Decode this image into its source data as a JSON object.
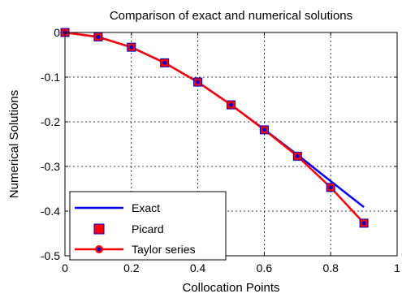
{
  "chart_data": {
    "type": "line",
    "title": "Comparison of exact and numerical solutions",
    "xlabel": "Collocation Points",
    "ylabel": "Numerical Solutions",
    "xlim": [
      0,
      1
    ],
    "ylim": [
      -0.5,
      0
    ],
    "x_ticks": [
      "0",
      "0.2",
      "0.4",
      "0.6",
      "0.8",
      "1"
    ],
    "y_ticks": [
      "0",
      "-0.1",
      "-0.2",
      "-0.3",
      "-0.4",
      "-0.5"
    ],
    "x_tick_values": [
      0,
      0.2,
      0.4,
      0.6,
      0.8,
      1
    ],
    "y_tick_values": [
      0,
      -0.1,
      -0.2,
      -0.3,
      -0.4,
      -0.5
    ],
    "grid": true,
    "grid_x": [
      0.2,
      0.4,
      0.6,
      0.8
    ],
    "grid_y": [
      -0.1,
      -0.2,
      -0.3,
      -0.4
    ],
    "legend_position": "bottom-left",
    "x": [
      0,
      0.1,
      0.2,
      0.3,
      0.4,
      0.5,
      0.6,
      0.7,
      0.8,
      0.9
    ],
    "series": [
      {
        "name": "Exact",
        "style": "line",
        "color": "#0000ff",
        "values": [
          0,
          -0.01,
          -0.033,
          -0.068,
          -0.111,
          -0.162,
          -0.217,
          -0.274,
          -0.333,
          -0.391
        ]
      },
      {
        "name": "Picard",
        "style": "square-marker",
        "color": "#ff0000",
        "marker_edge": "#0000cc",
        "values": [
          0,
          -0.01,
          -0.033,
          -0.068,
          -0.111,
          -0.162,
          -0.218,
          -0.277,
          -0.347,
          -0.427
        ]
      },
      {
        "name": "Taylor series",
        "style": "line-circle-marker",
        "color": "#ff0000",
        "marker_fill": "#0000cc",
        "values": [
          0,
          -0.01,
          -0.033,
          -0.068,
          -0.111,
          -0.162,
          -0.218,
          -0.277,
          -0.347,
          -0.427
        ]
      }
    ]
  }
}
